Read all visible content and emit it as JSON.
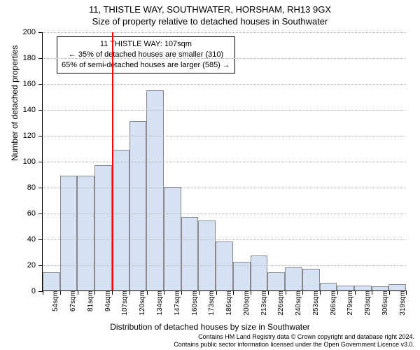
{
  "title": "11, THISTLE WAY, SOUTHWATER, HORSHAM, RH13 9GX",
  "subtitle": "Size of property relative to detached houses in Southwater",
  "yaxis_label": "Number of detached properties",
  "xaxis_label": "Distribution of detached houses by size in Southwater",
  "footer_line1": "Contains HM Land Registry data © Crown copyright and database right 2024.",
  "footer_line2": "Contains public sector information licensed under the Open Government Licence v3.0.",
  "chart": {
    "type": "histogram",
    "ylim": [
      0,
      200
    ],
    "ytick_step": 20,
    "bar_fill": "#d6e2f3",
    "bar_border": "#888888",
    "grid_color": "#b0b0b0",
    "background_color": "#ffffff",
    "xlabels": [
      "54sqm",
      "67sqm",
      "81sqm",
      "94sqm",
      "107sqm",
      "120sqm",
      "134sqm",
      "147sqm",
      "160sqm",
      "173sqm",
      "186sqm",
      "200sqm",
      "213sqm",
      "226sqm",
      "240sqm",
      "253sqm",
      "266sqm",
      "279sqm",
      "293sqm",
      "306sqm",
      "319sqm"
    ],
    "values": [
      14,
      89,
      89,
      97,
      109,
      131,
      155,
      80,
      57,
      54,
      38,
      22,
      27,
      14,
      18,
      17,
      6,
      4,
      4,
      3,
      5
    ],
    "marker_index": 4,
    "marker_color": "#ff0000"
  },
  "annotation": {
    "line1": "11 THISTLE WAY: 107sqm",
    "line2": "← 35% of detached houses are smaller (310)",
    "line3": "65% of semi-detached houses are larger (585) →"
  }
}
